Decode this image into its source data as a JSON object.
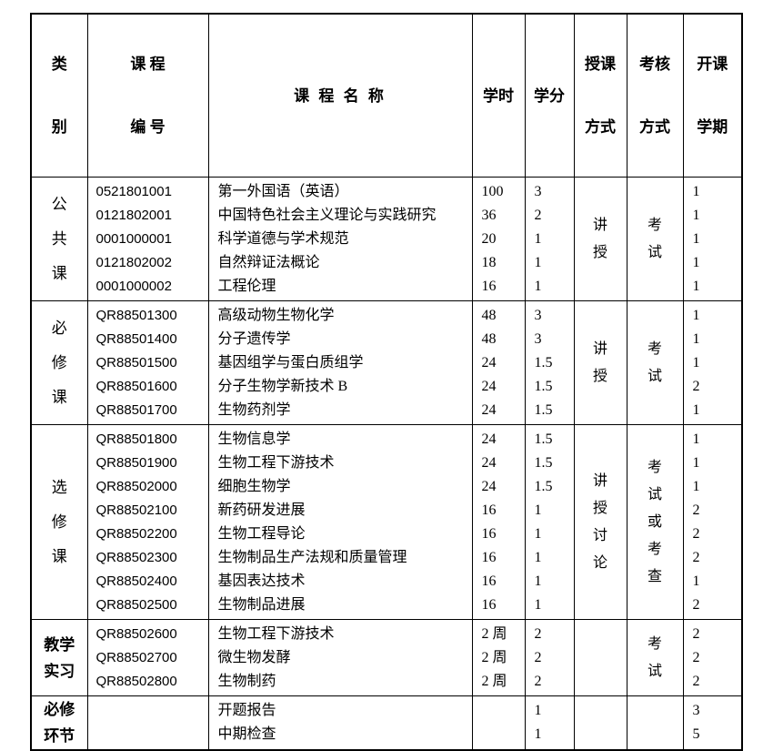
{
  "table": {
    "headers": {
      "category": [
        "类",
        "别"
      ],
      "course_code": [
        "课 程",
        "编 号"
      ],
      "course_name": "课 程 名 称",
      "hours": "学时",
      "credits": "学分",
      "teaching": [
        "授课",
        "方式"
      ],
      "assessment": [
        "考核",
        "方式"
      ],
      "semester": [
        "开课",
        "学期"
      ]
    },
    "sections": [
      {
        "category": [
          "公",
          "共",
          "课"
        ],
        "teaching": [
          "讲",
          "授"
        ],
        "assessment": [
          "考",
          "试"
        ],
        "courses": [
          {
            "code": "0521801001",
            "name": "第一外国语（英语）",
            "hours": "100",
            "credits": "3",
            "semester": "1"
          },
          {
            "code": "0121802001",
            "name": "中国特色社会主义理论与实践研究",
            "hours": "36",
            "credits": "2",
            "semester": "1"
          },
          {
            "code": "0001000001",
            "name": "科学道德与学术规范",
            "hours": "20",
            "credits": "1",
            "semester": "1"
          },
          {
            "code": "0121802002",
            "name": "自然辩证法概论",
            "hours": "18",
            "credits": "1",
            "semester": "1"
          },
          {
            "code": "0001000002",
            "name": "工程伦理",
            "hours": "16",
            "credits": "1",
            "semester": "1"
          }
        ]
      },
      {
        "category": [
          "必",
          "修",
          "课"
        ],
        "teaching": [
          "讲",
          "授"
        ],
        "assessment": [
          "考",
          "试"
        ],
        "courses": [
          {
            "code": "QR88501300",
            "name": "高级动物生物化学",
            "hours": "48",
            "credits": "3",
            "semester": "1"
          },
          {
            "code": "QR88501400",
            "name": "分子遗传学",
            "hours": "48",
            "credits": "3",
            "semester": "1"
          },
          {
            "code": "QR88501500",
            "name": "基因组学与蛋白质组学",
            "hours": "24",
            "credits": "1.5",
            "semester": "1"
          },
          {
            "code": "QR88501600",
            "name": "分子生物学新技术 B",
            "hours": "24",
            "credits": "1.5",
            "semester": "2"
          },
          {
            "code": "QR88501700",
            "name": "生物药剂学",
            "hours": "24",
            "credits": "1.5",
            "semester": "1"
          }
        ]
      },
      {
        "category": [
          "选",
          "修",
          "课"
        ],
        "teaching": [
          "讲",
          "授",
          "讨",
          "论"
        ],
        "assessment": [
          "考",
          "试",
          "或",
          "考",
          "查"
        ],
        "courses": [
          {
            "code": "QR88501800",
            "name": "生物信息学",
            "hours": "24",
            "credits": "1.5",
            "semester": "1"
          },
          {
            "code": "QR88501900",
            "name": "生物工程下游技术",
            "hours": "24",
            "credits": "1.5",
            "semester": "1"
          },
          {
            "code": "QR88502000",
            "name": "细胞生物学",
            "hours": "24",
            "credits": "1.5",
            "semester": "1"
          },
          {
            "code": "QR88502100",
            "name": "新药研发进展",
            "hours": "16",
            "credits": "1",
            "semester": "2"
          },
          {
            "code": "QR88502200",
            "name": "生物工程导论",
            "hours": "16",
            "credits": "1",
            "semester": "2"
          },
          {
            "code": "QR88502300",
            "name": "生物制品生产法规和质量管理",
            "hours": "16",
            "credits": "1",
            "semester": "2"
          },
          {
            "code": "QR88502400",
            "name": "基因表达技术",
            "hours": "16",
            "credits": "1",
            "semester": "1"
          },
          {
            "code": "QR88502500",
            "name": "生物制品进展",
            "hours": "16",
            "credits": "1",
            "semester": "2"
          }
        ]
      },
      {
        "category": [
          "教学",
          "实习"
        ],
        "teaching": [],
        "assessment": [
          "考",
          "试"
        ],
        "courses": [
          {
            "code": "QR88502600",
            "name": "生物工程下游技术",
            "hours": "2 周",
            "credits": "2",
            "semester": "2"
          },
          {
            "code": "QR88502700",
            "name": "微生物发酵",
            "hours": "2 周",
            "credits": "2",
            "semester": "2"
          },
          {
            "code": "QR88502800",
            "name": "生物制药",
            "hours": "2 周",
            "credits": "2",
            "semester": "2"
          }
        ]
      },
      {
        "category": [
          "必修",
          "环节"
        ],
        "teaching": [],
        "assessment": [],
        "courses": [
          {
            "code": "",
            "name": "开题报告",
            "hours": "",
            "credits": "1",
            "semester": "3"
          },
          {
            "code": "",
            "name": "中期检查",
            "hours": "",
            "credits": "1",
            "semester": "5"
          }
        ]
      }
    ]
  }
}
